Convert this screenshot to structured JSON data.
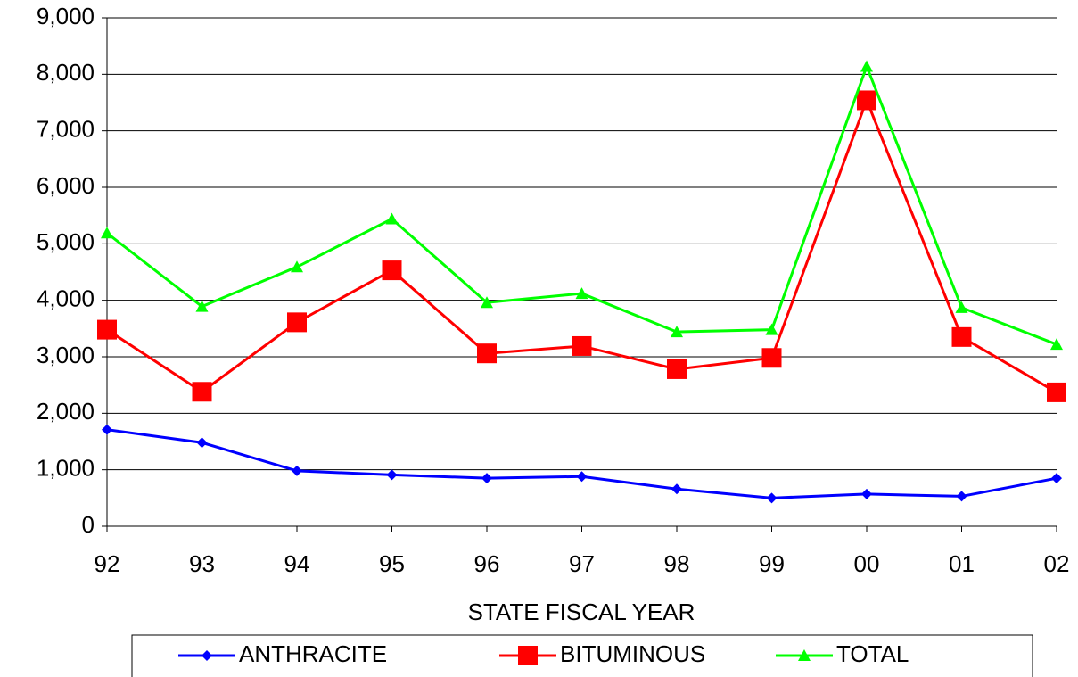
{
  "chart_data": {
    "type": "line",
    "x_label": "STATE FISCAL YEAR",
    "categories": [
      "92",
      "93",
      "94",
      "95",
      "96",
      "97",
      "98",
      "99",
      "00",
      "01",
      "02"
    ],
    "series": [
      {
        "name": "ANTHRACITE",
        "color": "#0000ff",
        "marker": "diamond",
        "values": [
          1710,
          1480,
          980,
          910,
          850,
          880,
          660,
          500,
          570,
          530,
          850
        ]
      },
      {
        "name": "BITUMINOUS",
        "color": "#ff0000",
        "marker": "square",
        "values": [
          3480,
          2380,
          3610,
          4530,
          3060,
          3190,
          2780,
          2980,
          7540,
          3350,
          2370
        ]
      },
      {
        "name": "TOTAL",
        "color": "#00ff00",
        "marker": "triangle",
        "values": [
          5190,
          3890,
          4590,
          5440,
          3960,
          4120,
          3440,
          3480,
          8140,
          3870,
          3220
        ]
      }
    ],
    "ylim": [
      0,
      9000
    ],
    "yticks": [
      0,
      {
        "value": 1000,
        "label": "1,000"
      },
      {
        "value": 2000,
        "label": "2,000"
      },
      {
        "value": 3000,
        "label": "3,000"
      },
      {
        "value": 4000,
        "label": "4,000"
      },
      {
        "value": 5000,
        "label": "5,000"
      },
      {
        "value": 6000,
        "label": "6,000"
      },
      {
        "value": 7000,
        "label": "7,000"
      },
      {
        "value": 8000,
        "label": "8,000"
      },
      {
        "value": 9000,
        "label": "9,000"
      }
    ],
    "grid": true,
    "legend": "bottom"
  }
}
